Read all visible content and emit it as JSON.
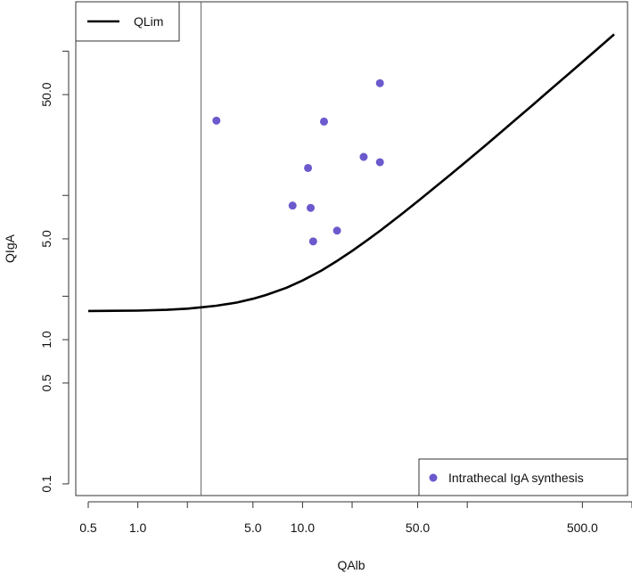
{
  "chart_data": {
    "type": "scatter",
    "title": "",
    "xlabel": "QAlb",
    "ylabel": "QIgA",
    "x_scale": "log",
    "y_scale": "log",
    "xlim": [
      0.42,
      940
    ],
    "ylim": [
      0.083,
      220
    ],
    "x_ticks": [
      0.5,
      1.0,
      2.0,
      5.0,
      10.0,
      20.0,
      50.0,
      100.0,
      500.0,
      1000.0
    ],
    "x_tick_labels": [
      "0.5",
      "1.0",
      "",
      "5.0",
      "10.0",
      "",
      "50.0",
      "",
      "500.0",
      ""
    ],
    "y_ticks": [
      0.1,
      0.5,
      1.0,
      2.0,
      5.0,
      10.0,
      50.0,
      100.0
    ],
    "y_tick_labels": [
      "0.1",
      "0.5",
      "1.0",
      "",
      "5.0",
      "",
      "50.0",
      ""
    ],
    "vertical_reference_line": {
      "x": 2.42
    },
    "grid": false,
    "series": [
      {
        "name": "QLim",
        "kind": "line",
        "color": "#000000",
        "x": [
          0.5,
          1,
          1.5,
          2,
          2.5,
          3,
          4,
          5,
          6,
          8,
          10,
          13,
          16,
          20,
          25,
          30,
          40,
          50,
          65,
          80,
          100,
          130,
          160,
          200,
          250,
          300,
          400,
          500,
          600,
          780
        ],
        "y": [
          1.58,
          1.59,
          1.61,
          1.64,
          1.68,
          1.72,
          1.81,
          1.92,
          2.04,
          2.29,
          2.57,
          3.01,
          3.48,
          4.12,
          4.94,
          5.76,
          7.43,
          9.1,
          11.6,
          14.1,
          17.4,
          22.4,
          27.4,
          34.1,
          42.4,
          50.8,
          67.4,
          84.1,
          100.8,
          130.8
        ]
      },
      {
        "name": "Intrathecal IgA synthesis",
        "kind": "points",
        "color": "#6a5acd",
        "x": [
          3.0,
          29.5,
          13.5,
          23.5,
          29.5,
          10.8,
          8.7,
          11.2,
          16.2,
          11.6
        ],
        "y": [
          33.0,
          60.0,
          32.5,
          18.5,
          17.0,
          15.5,
          8.5,
          8.2,
          5.7,
          4.8
        ]
      }
    ],
    "legends": [
      {
        "position": "top-left",
        "entries": [
          "QLim"
        ]
      },
      {
        "position": "bottom-right",
        "entries": [
          "Intrathecal IgA synthesis"
        ]
      }
    ]
  }
}
